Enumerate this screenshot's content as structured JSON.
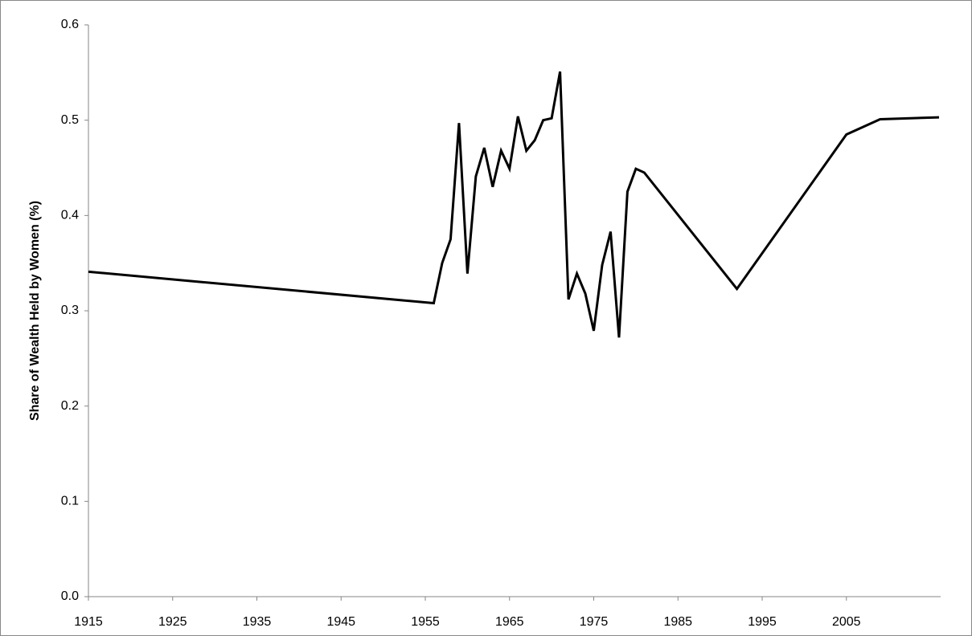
{
  "chart_data": {
    "type": "line",
    "y_label": "Share of Wealth Held by Women (%)",
    "x": [
      1915,
      1956,
      1957,
      1958,
      1959,
      1960,
      1961,
      1962,
      1963,
      1964,
      1965,
      1966,
      1967,
      1968,
      1969,
      1970,
      1971,
      1972,
      1973,
      1974,
      1975,
      1976,
      1977,
      1978,
      1979,
      1980,
      1981,
      1992,
      2005,
      2009,
      2016
    ],
    "series": [
      {
        "color": "#000000",
        "values": [
          0.341,
          0.308,
          0.35,
          0.375,
          0.497,
          0.339,
          0.441,
          0.471,
          0.43,
          0.468,
          0.449,
          0.504,
          0.468,
          0.479,
          0.5,
          0.502,
          0.551,
          0.312,
          0.339,
          0.318,
          0.279,
          0.348,
          0.383,
          0.272,
          0.425,
          0.449,
          0.445,
          0.323,
          0.485,
          0.501,
          0.503
        ]
      }
    ],
    "xlim": [
      1915,
      2016
    ],
    "xticks": [
      1915,
      1925,
      1935,
      1945,
      1955,
      1965,
      1975,
      1985,
      1995,
      2005
    ],
    "ylim": [
      0,
      0.6
    ],
    "yticks": [
      {
        "value": 0,
        "label": "0.0"
      },
      0.1,
      0.2,
      0.3,
      0.4,
      0.5,
      0.6
    ],
    "grid": false
  }
}
